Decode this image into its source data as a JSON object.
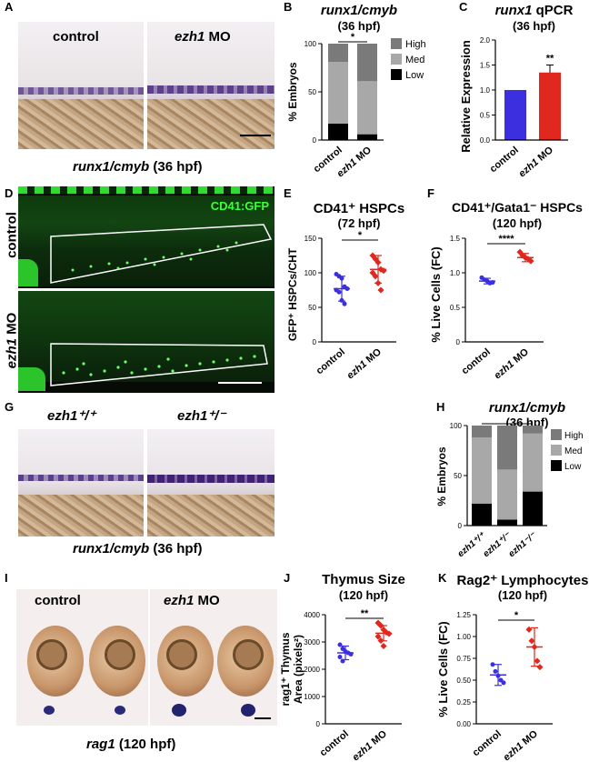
{
  "panels": {
    "A": {
      "letter": "A",
      "left_label": "control",
      "right_label_gene": "ezh1",
      "right_label_rest": " MO",
      "caption_gene": "runx1/cmyb",
      "caption_rest": " (36 hpf)"
    },
    "B": {
      "letter": "B",
      "title": "runx1/cmyb",
      "subtitle": "(36 hpf)",
      "ylabel": "% Embryos",
      "sig": "*"
    },
    "C": {
      "letter": "C",
      "title_gene": "runx1",
      "title_rest": " qPCR",
      "subtitle": "(36 hpf)",
      "ylabel": "Relative Expression",
      "sig": "**"
    },
    "D": {
      "letter": "D",
      "marker": "CD41:GFP",
      "top_label": "control",
      "bottom_label_gene": "ezh1",
      "bottom_label_rest": " MO"
    },
    "E": {
      "letter": "E",
      "title": "CD41⁺ HSPCs",
      "subtitle": "(72 hpf)",
      "ylabel": "GFP⁺ HSPCs/CHT",
      "sig": "*"
    },
    "F": {
      "letter": "F",
      "title": "CD41⁺/Gata1⁻ HSPCs",
      "subtitle": "(120 hpf)",
      "ylabel": "% Live Cells (FC)",
      "sig": "****"
    },
    "G": {
      "letter": "G",
      "labels": [
        "ezh1⁺/⁺",
        "ezh1⁺/⁻",
        "ezh1⁻/⁻"
      ],
      "caption_gene": "runx1/cmyb",
      "caption_rest": " (36 hpf)"
    },
    "H": {
      "letter": "H",
      "title": "runx1/cmyb",
      "subtitle": "(36 hpf)",
      "ylabel": "% Embryos",
      "sig1": "****",
      "sig2": "****"
    },
    "I": {
      "letter": "I",
      "left_label": "control",
      "right_label_gene": "ezh1",
      "right_label_rest": " MO",
      "caption_gene": "rag1",
      "caption_rest": " (120 hpf)"
    },
    "J": {
      "letter": "J",
      "title": "Thymus Size",
      "subtitle": "(120 hpf)",
      "ylabel_line1": "rag1⁺ Thymus",
      "ylabel_line2": "Area (pixels²)",
      "sig": "**"
    },
    "K": {
      "letter": "K",
      "title": "Rag2⁺ Lymphocytes",
      "subtitle": "(120 hpf)",
      "ylabel": "% Live Cells (FC)",
      "sig": "*"
    }
  },
  "colors": {
    "control": "#3b2fe0",
    "ezh1_mo": "#e0281e",
    "high": "#7a7a7a",
    "med": "#a8a8a8",
    "low": "#000000",
    "gfp": "#3cff3c"
  },
  "chart_data": [
    {
      "id": "B",
      "type": "bar",
      "stacked": true,
      "categories": [
        "control",
        "ezh1 MO"
      ],
      "ylim": [
        0,
        100
      ],
      "yticks": [
        0,
        50,
        100
      ],
      "series": [
        {
          "name": "Low",
          "values": [
            17,
            6
          ]
        },
        {
          "name": "Med",
          "values": [
            64,
            55
          ]
        },
        {
          "name": "High",
          "values": [
            19,
            39
          ]
        }
      ]
    },
    {
      "id": "C",
      "type": "bar",
      "categories": [
        "control",
        "ezh1 MO"
      ],
      "ylim": [
        0,
        2.0
      ],
      "yticks": [
        0.0,
        0.5,
        1.0,
        1.5,
        2.0
      ],
      "values": [
        1.0,
        1.35
      ],
      "errors": [
        0,
        0.15
      ]
    },
    {
      "id": "E",
      "type": "scatter",
      "categories": [
        "control",
        "ezh1 MO"
      ],
      "ylim": [
        0,
        150
      ],
      "yticks": [
        0,
        50,
        100,
        150
      ],
      "points": [
        [
          98,
          95,
          92,
          80,
          77,
          75,
          72,
          60,
          55
        ],
        [
          125,
          120,
          115,
          105,
          103,
          100,
          95,
          85,
          75
        ]
      ],
      "means": [
        77,
        105
      ],
      "sds": [
        18,
        20
      ]
    },
    {
      "id": "F",
      "type": "scatter",
      "categories": [
        "control",
        "ezh1 MO"
      ],
      "ylim": [
        0,
        1.5
      ],
      "yticks": [
        0,
        0.5,
        1.0,
        1.5
      ],
      "points": [
        [
          0.93,
          0.9,
          0.88,
          0.85,
          0.86
        ],
        [
          1.3,
          1.25,
          1.22,
          1.2,
          1.17
        ]
      ],
      "means": [
        0.88,
        1.22
      ],
      "sds": [
        0.04,
        0.06
      ]
    },
    {
      "id": "H",
      "type": "bar",
      "stacked": true,
      "categories": [
        "ezh1+/+",
        "ezh1+/-",
        "ezh1-/-"
      ],
      "ylim": [
        0,
        100
      ],
      "yticks": [
        0,
        50,
        100
      ],
      "series": [
        {
          "name": "Low",
          "values": [
            22,
            6,
            34
          ]
        },
        {
          "name": "Med",
          "values": [
            66,
            50,
            58
          ]
        },
        {
          "name": "High",
          "values": [
            12,
            44,
            8
          ]
        }
      ]
    },
    {
      "id": "J",
      "type": "scatter",
      "categories": [
        "control",
        "ezh1 MO"
      ],
      "ylim": [
        0,
        4000
      ],
      "yticks": [
        0,
        1000,
        2000,
        3000,
        4000
      ],
      "points": [
        [
          2900,
          2750,
          2650,
          2600,
          2550,
          2450,
          2300
        ],
        [
          3700,
          3600,
          3450,
          3350,
          3300,
          3200,
          3050,
          2850
        ]
      ],
      "means": [
        2600,
        3320
      ],
      "sds": [
        250,
        280
      ]
    },
    {
      "id": "K",
      "type": "scatter",
      "categories": [
        "control",
        "ezh1 MO"
      ],
      "ylim": [
        0,
        1.25
      ],
      "yticks": [
        0.0,
        0.25,
        0.5,
        0.75,
        1.0,
        1.25
      ],
      "points": [
        [
          0.68,
          0.6,
          0.55,
          0.5,
          0.47
        ],
        [
          1.08,
          0.95,
          0.88,
          0.72,
          0.65
        ]
      ],
      "means": [
        0.56,
        0.88
      ],
      "sds": [
        0.12,
        0.22
      ]
    }
  ]
}
